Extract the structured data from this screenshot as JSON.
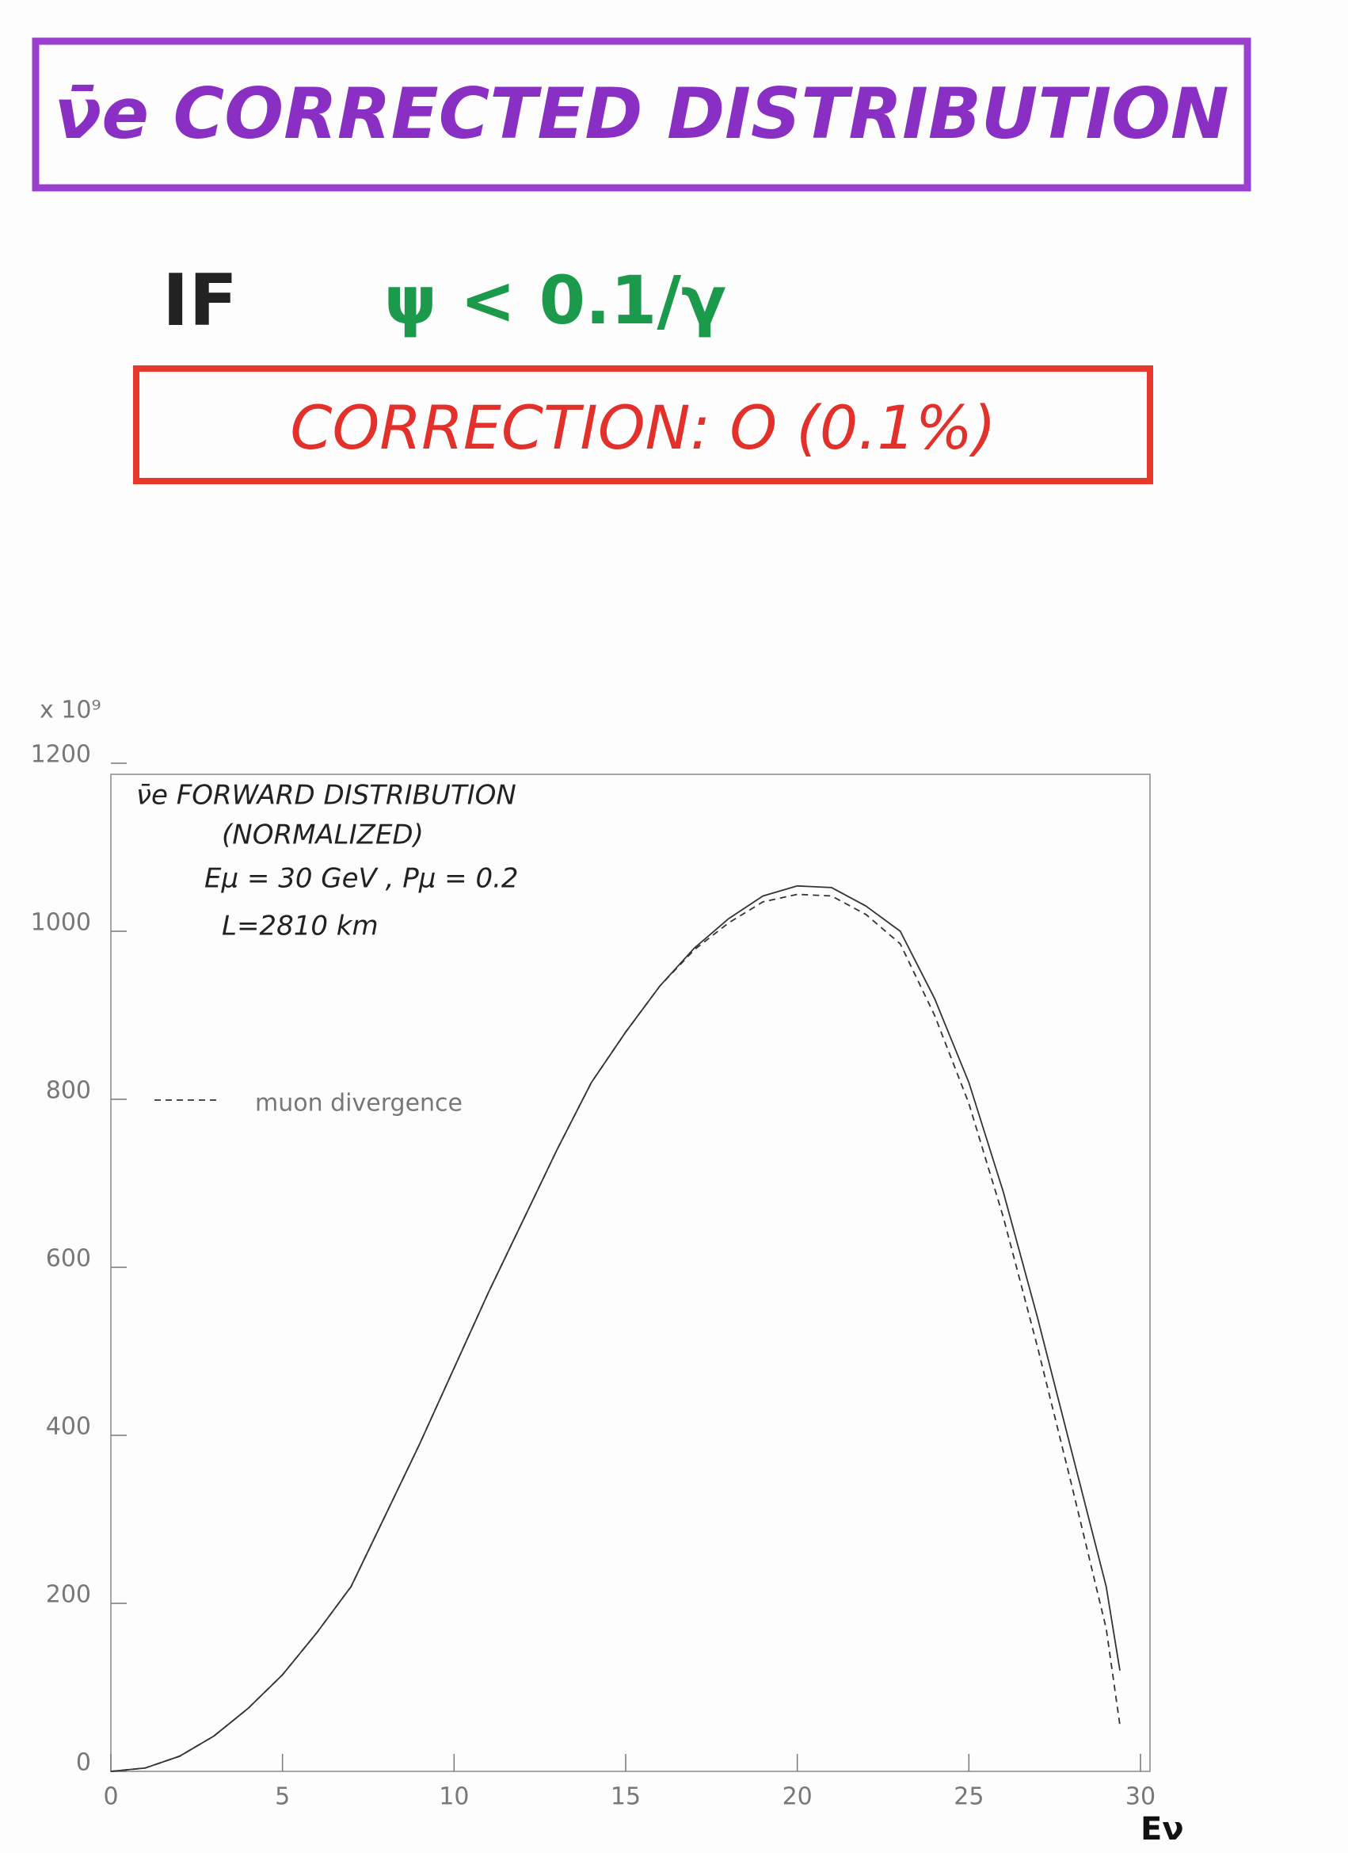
{
  "header": {
    "title": "ν̄e CORRECTED DISTRIBUTION",
    "condition_prefix": "IF",
    "condition": "ψ < 0.1/γ",
    "correction": "CORRECTION: O (0.1%)"
  },
  "chart_data": {
    "type": "line",
    "multiplier": "x 10⁹",
    "x_label": "Eν",
    "annotations": [
      "ν̄e FORWARD DISTRIBUTION",
      "(NORMALIZED)",
      "Eμ = 30 GeV , Pμ = 0.2",
      "L=2810 km"
    ],
    "x": [
      0,
      1,
      2,
      3,
      4,
      5,
      6,
      7,
      8,
      9,
      10,
      11,
      12,
      13,
      14,
      15,
      16,
      17,
      18,
      19,
      20,
      21,
      22,
      23,
      24,
      25,
      26,
      27,
      28,
      29,
      29.4
    ],
    "series": [
      {
        "color": "#333333",
        "dash": false,
        "values": [
          0,
          4,
          18,
          42,
          75,
          115,
          165,
          220,
          305,
          390,
          480,
          570,
          655,
          740,
          820,
          880,
          935,
          980,
          1015,
          1042,
          1054,
          1052,
          1030,
          1000,
          920,
          820,
          690,
          540,
          380,
          220,
          120
        ]
      },
      {
        "name": "muon divergence",
        "color": "#333333",
        "dash": true,
        "values": [
          0,
          4,
          18,
          42,
          75,
          115,
          165,
          220,
          305,
          390,
          480,
          570,
          655,
          740,
          820,
          880,
          935,
          978,
          1010,
          1035,
          1044,
          1042,
          1020,
          985,
          900,
          795,
          660,
          505,
          340,
          170,
          55
        ]
      }
    ],
    "xlim": [
      0,
      30
    ],
    "xticks": [
      0,
      5,
      10,
      15,
      20,
      25,
      30
    ],
    "ylim": [
      0,
      1200
    ],
    "yticks": [
      0,
      200,
      400,
      600,
      800,
      1000,
      1200
    ],
    "grid": false
  }
}
